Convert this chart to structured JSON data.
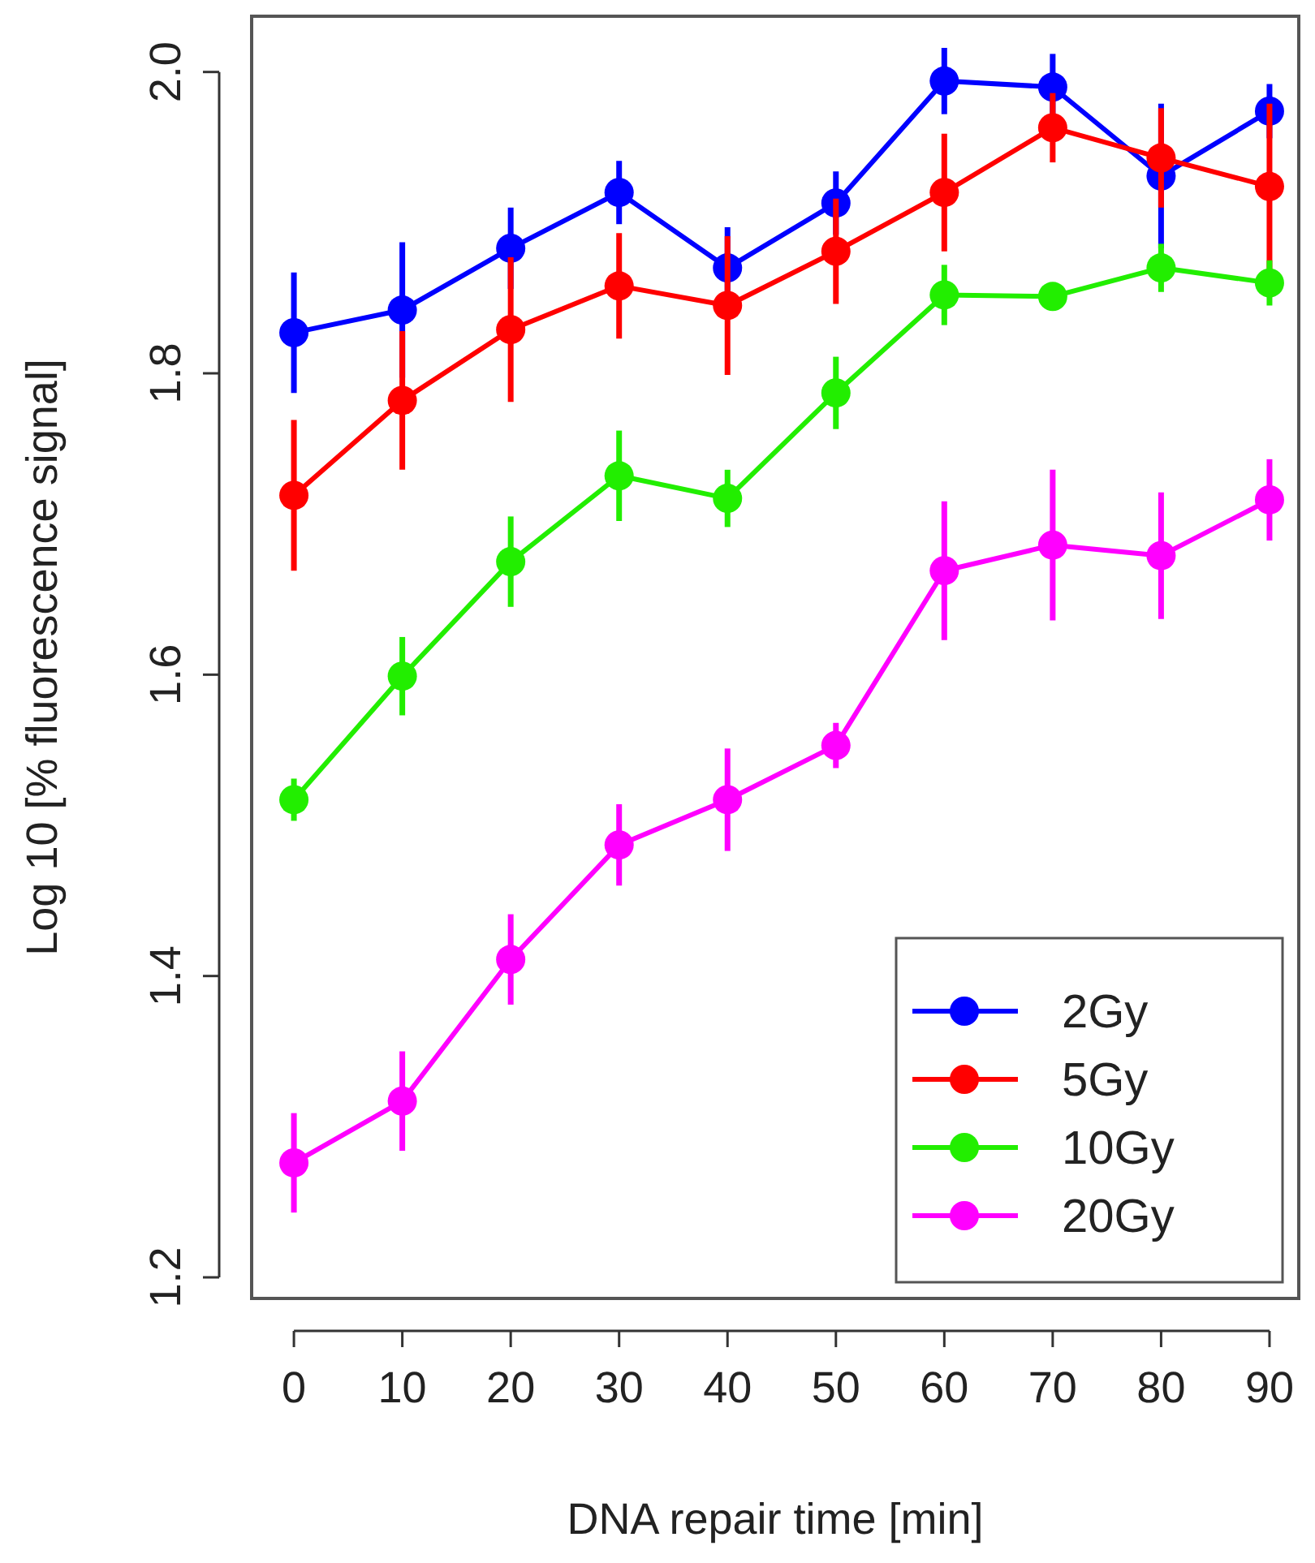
{
  "chart_data": {
    "type": "line",
    "xlabel": "DNA repair time [min]",
    "ylabel": "Log 10 [% fluorescence signal]",
    "x": [
      0,
      10,
      20,
      30,
      40,
      50,
      60,
      70,
      80,
      90
    ],
    "xlim": [
      -3.9,
      92.7
    ],
    "xticks": [
      0,
      10,
      20,
      30,
      40,
      50,
      60,
      70,
      80,
      90
    ],
    "ylim": [
      1.186,
      2.037
    ],
    "yticks": [
      {
        "value": 1.2,
        "label": "1.2"
      },
      {
        "value": 1.4,
        "label": "1.4"
      },
      {
        "value": 1.6,
        "label": "1.6"
      },
      {
        "value": 1.8,
        "label": "1.8"
      },
      {
        "value": 2.0,
        "label": "2.0"
      }
    ],
    "grid": false,
    "legend": "bottom right",
    "marker": "circle",
    "line_style": "solid",
    "series": [
      {
        "name": "2Gy",
        "color": "#0000ff",
        "values": [
          1.827,
          1.842,
          1.883,
          1.92,
          1.87,
          1.913,
          1.994,
          1.99,
          1.931,
          1.974
        ],
        "errors": [
          0.04,
          0.045,
          0.027,
          0.021,
          0.027,
          0.021,
          0.022,
          0.022,
          0.048,
          0.018
        ]
      },
      {
        "name": "5Gy",
        "color": "#ff0000",
        "values": [
          1.719,
          1.782,
          1.829,
          1.858,
          1.845,
          1.881,
          1.92,
          1.963,
          1.943,
          1.924
        ],
        "errors": [
          0.05,
          0.046,
          0.048,
          0.035,
          0.046,
          0.035,
          0.039,
          0.023,
          0.033,
          0.055
        ]
      },
      {
        "name": "10Gy",
        "color": "#22ee00",
        "values": [
          1.517,
          1.599,
          1.675,
          1.732,
          1.717,
          1.787,
          1.852,
          1.851,
          1.87,
          1.86
        ],
        "errors": [
          0.014,
          0.026,
          0.03,
          0.03,
          0.019,
          0.024,
          0.02,
          0.005,
          0.016,
          0.015
        ]
      },
      {
        "name": "20Gy",
        "color": "#ff00ff",
        "values": [
          1.276,
          1.317,
          1.411,
          1.487,
          1.517,
          1.553,
          1.669,
          1.686,
          1.679,
          1.716
        ],
        "errors": [
          0.033,
          0.033,
          0.03,
          0.027,
          0.034,
          0.015,
          0.046,
          0.05,
          0.042,
          0.027
        ]
      }
    ]
  }
}
